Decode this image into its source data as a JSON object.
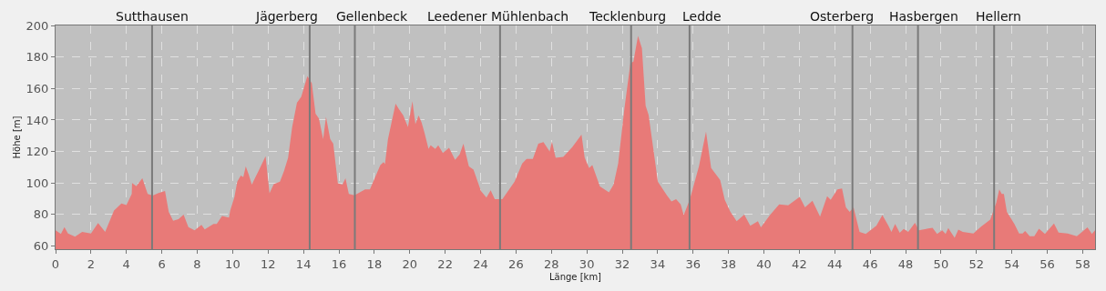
{
  "chart_data": {
    "type": "area",
    "xlabel": "Länge [km]",
    "ylabel": "Höhe [m]",
    "xlim": [
      0,
      58.7
    ],
    "ylim": [
      58,
      200
    ],
    "xticks": [
      0,
      2,
      4,
      6,
      8,
      10,
      12,
      14,
      16,
      18,
      20,
      22,
      24,
      26,
      28,
      30,
      32,
      34,
      36,
      38,
      40,
      42,
      44,
      46,
      48,
      50,
      52,
      54,
      56,
      58
    ],
    "yticks": [
      60,
      80,
      100,
      120,
      140,
      160,
      180,
      200
    ],
    "grid": true,
    "marker": "none",
    "series": [
      {
        "color": "#e87a78",
        "x": [
          0,
          0.3,
          0.5,
          0.7,
          1.1,
          1.5,
          2.0,
          2.4,
          2.8,
          3.3,
          3.72,
          4.0,
          4.3,
          4.32,
          4.56,
          4.9,
          5.2,
          5.49,
          5.78,
          6.18,
          6.39,
          6.64,
          6.94,
          7.23,
          7.5,
          7.85,
          8.24,
          8.42,
          8.92,
          9.1,
          9.4,
          9.79,
          9.86,
          10.1,
          10.26,
          10.46,
          10.6,
          10.74,
          10.9,
          11.08,
          11.46,
          11.86,
          12.08,
          12.32,
          12.67,
          12.9,
          13.13,
          13.36,
          13.63,
          13.87,
          14.22,
          14.47,
          14.68,
          14.87,
          15.11,
          15.27,
          15.51,
          15.68,
          15.94,
          16.2,
          16.37,
          16.56,
          16.88,
          17.48,
          17.75,
          18.34,
          18.52,
          18.6,
          18.77,
          19.2,
          19.38,
          19.63,
          19.9,
          20.15,
          20.32,
          20.5,
          20.67,
          20.84,
          21.06,
          21.18,
          21.44,
          21.61,
          21.87,
          22.22,
          22.56,
          22.82,
          23.03,
          23.34,
          23.6,
          24.02,
          24.33,
          24.57,
          24.8,
          25.23,
          25.92,
          26.35,
          26.6,
          26.95,
          27.26,
          27.55,
          27.9,
          28.03,
          28.24,
          28.67,
          29.19,
          29.7,
          29.88,
          30.13,
          30.31,
          30.74,
          31.25,
          31.51,
          31.77,
          32.12,
          32.46,
          32.63,
          32.89,
          33.11,
          33.32,
          33.49,
          34.01,
          34.52,
          34.78,
          35.04,
          35.3,
          35.47,
          35.81,
          36.33,
          36.73,
          37.02,
          37.53,
          37.79,
          38.11,
          38.46,
          38.89,
          39.23,
          39.66,
          39.83,
          40.34,
          40.86,
          41.37,
          42.02,
          42.32,
          42.74,
          43.17,
          43.57,
          43.77,
          44.15,
          44.41,
          44.63,
          44.84,
          45.06,
          45.4,
          45.75,
          46.35,
          46.69,
          47.03,
          47.2,
          47.41,
          47.67,
          47.89,
          48.15,
          48.53,
          48.75,
          49.52,
          49.78,
          50.07,
          50.26,
          50.41,
          50.77,
          50.98,
          51.23,
          51.83,
          52.26,
          52.78,
          53.12,
          53.29,
          53.43,
          53.55,
          53.72,
          54.15,
          54.41,
          54.61,
          54.75,
          55.01,
          55.27,
          55.53,
          55.87,
          56.38,
          56.64,
          57.15,
          57.67,
          57.92,
          58.27,
          58.52,
          58.7
        ],
        "values": [
          70,
          67.7,
          72,
          68,
          66,
          69,
          68,
          74.6,
          69,
          82.5,
          87,
          86,
          93,
          100,
          98,
          103,
          93,
          92,
          93.5,
          95,
          81.6,
          76,
          77,
          80,
          72,
          70,
          73.5,
          70.6,
          74,
          74,
          79,
          78,
          82.5,
          91,
          100.8,
          104.7,
          103.7,
          110.5,
          105.6,
          99,
          107.6,
          117,
          93.5,
          99.3,
          100.8,
          107.6,
          116,
          135.5,
          151,
          154.7,
          167.8,
          163.4,
          144,
          141,
          127.8,
          142,
          127.8,
          125,
          99.9,
          99,
          103,
          93,
          92.2,
          96,
          96,
          111.4,
          113.3,
          112,
          127.8,
          150.3,
          147,
          143,
          135.5,
          151.9,
          137.4,
          142.8,
          138.4,
          131.6,
          121.6,
          124,
          121.6,
          124,
          119.1,
          122.4,
          114.7,
          118.2,
          124.9,
          110.5,
          108.5,
          95,
          90.8,
          95.4,
          89.7,
          89.7,
          100.8,
          112.4,
          115.3,
          115.3,
          124.9,
          125.9,
          120,
          126.3,
          116,
          116.6,
          123,
          130.7,
          116,
          109.5,
          111.4,
          97.9,
          94.1,
          99,
          112.4,
          147,
          176,
          177,
          193.3,
          185.6,
          149,
          143.2,
          100.8,
          92.2,
          88.3,
          89.7,
          86.4,
          79.7,
          89.3,
          110.5,
          132.6,
          109.5,
          101.8,
          89.3,
          81.6,
          75.8,
          80,
          72.9,
          75.8,
          71.9,
          79.7,
          86.4,
          85.8,
          91.2,
          84.5,
          88.7,
          78.7,
          91.6,
          89.3,
          96,
          96.6,
          84.5,
          81.6,
          84.5,
          69,
          67.7,
          72.9,
          79.7,
          72.9,
          69,
          74,
          68.4,
          70.9,
          69,
          74.8,
          70,
          71.6,
          67.7,
          70,
          67.7,
          71.4,
          65.2,
          70.4,
          69,
          68,
          72.3,
          76.8,
          87.4,
          96,
          93.1,
          93.1,
          81.6,
          73.9,
          68,
          68,
          69.6,
          66.2,
          66.2,
          71,
          67.7,
          74.3,
          68.5,
          68,
          66.2,
          68.5,
          71.9,
          67.7,
          70
        ]
      }
    ],
    "ref_lines": [
      {
        "axis": "x",
        "value": 5.45,
        "label": "Sutthausen",
        "color": "#7a7a7a"
      },
      {
        "axis": "x",
        "value": 14.35,
        "label": "Jägerberg",
        "color": "#7a7a7a"
      },
      {
        "axis": "x",
        "value": 16.9,
        "label": "Gellenbeck",
        "color": "#7a7a7a"
      },
      {
        "axis": "x",
        "value": 25.1,
        "label": "Leedener Mühlenbach",
        "color": "#7a7a7a"
      },
      {
        "axis": "x",
        "value": 32.5,
        "label": "Tecklenburg",
        "color": "#7a7a7a"
      },
      {
        "axis": "x",
        "value": 35.8,
        "label": "Ledde",
        "color": "#7a7a7a"
      },
      {
        "axis": "x",
        "value": 45.0,
        "label": "Osterberg",
        "color": "#7a7a7a"
      },
      {
        "axis": "x",
        "value": 48.7,
        "label": "Hasbergen",
        "color": "#7a7a7a"
      },
      {
        "axis": "x",
        "value": 53.0,
        "label": "Hellern",
        "color": "#7a7a7a"
      }
    ]
  }
}
